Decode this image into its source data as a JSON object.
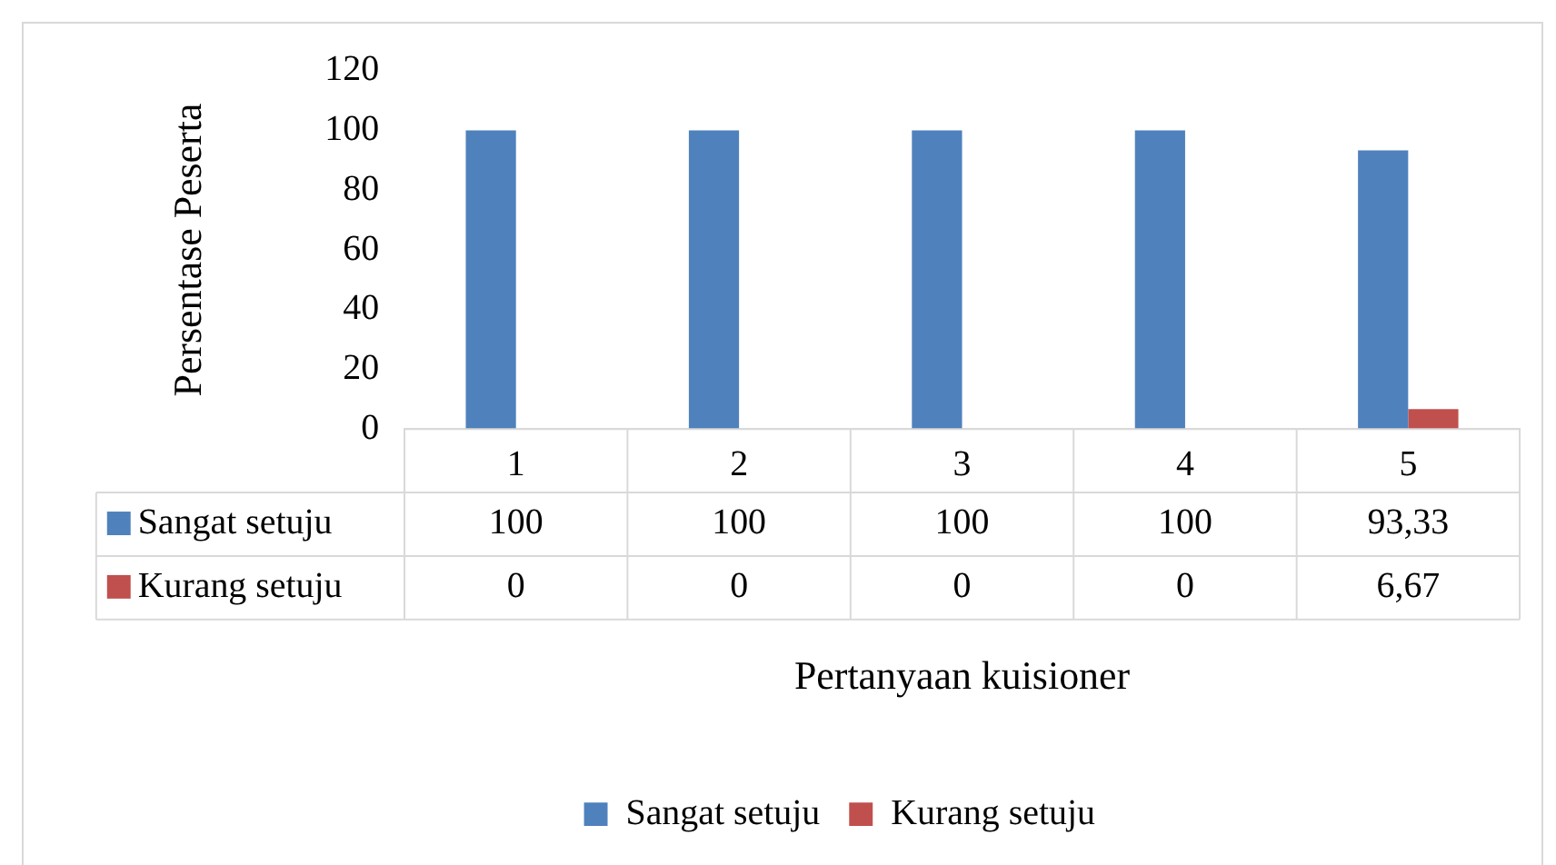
{
  "chart_data": {
    "type": "bar",
    "xlabel": "Pertanyaan kuisioner",
    "ylabel": "Persentase Peserta",
    "categories": [
      "1",
      "2",
      "3",
      "4",
      "5"
    ],
    "series": [
      {
        "name": "Sangat setuju",
        "color": "#4f81bd",
        "values": [
          100,
          100,
          100,
          100,
          93.33
        ],
        "value_labels": [
          "100",
          "100",
          "100",
          "100",
          "93,33"
        ]
      },
      {
        "name": "Kurang setuju",
        "color": "#c0504d",
        "values": [
          0,
          0,
          0,
          0,
          6.67
        ],
        "value_labels": [
          "0",
          "0",
          "0",
          "0",
          "6,67"
        ]
      }
    ],
    "ylim": [
      0,
      120
    ],
    "yticks": [
      0,
      20,
      40,
      60,
      80,
      100,
      120
    ],
    "grid": false,
    "legend": "bottom"
  }
}
